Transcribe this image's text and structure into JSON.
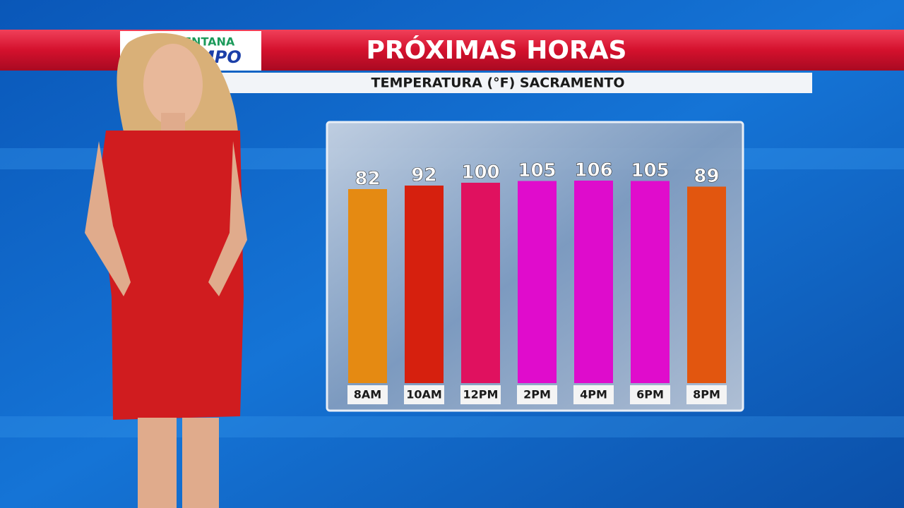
{
  "logo": {
    "line1": "VENTANA",
    "line2": "TIEMPO"
  },
  "chart_data": {
    "type": "bar",
    "title": "PRÓXIMAS HORAS",
    "subtitle": "TEMPERATURA (°F) SACRAMENTO",
    "categories": [
      "8AM",
      "10AM",
      "12PM",
      "2PM",
      "4PM",
      "6PM",
      "8PM"
    ],
    "values": [
      82,
      92,
      100,
      105,
      106,
      105,
      89
    ],
    "colors": [
      "#e58a12",
      "#d6200e",
      "#e0115f",
      "#e00ccc",
      "#de0ccc",
      "#e00ccc",
      "#e2560f"
    ]
  }
}
